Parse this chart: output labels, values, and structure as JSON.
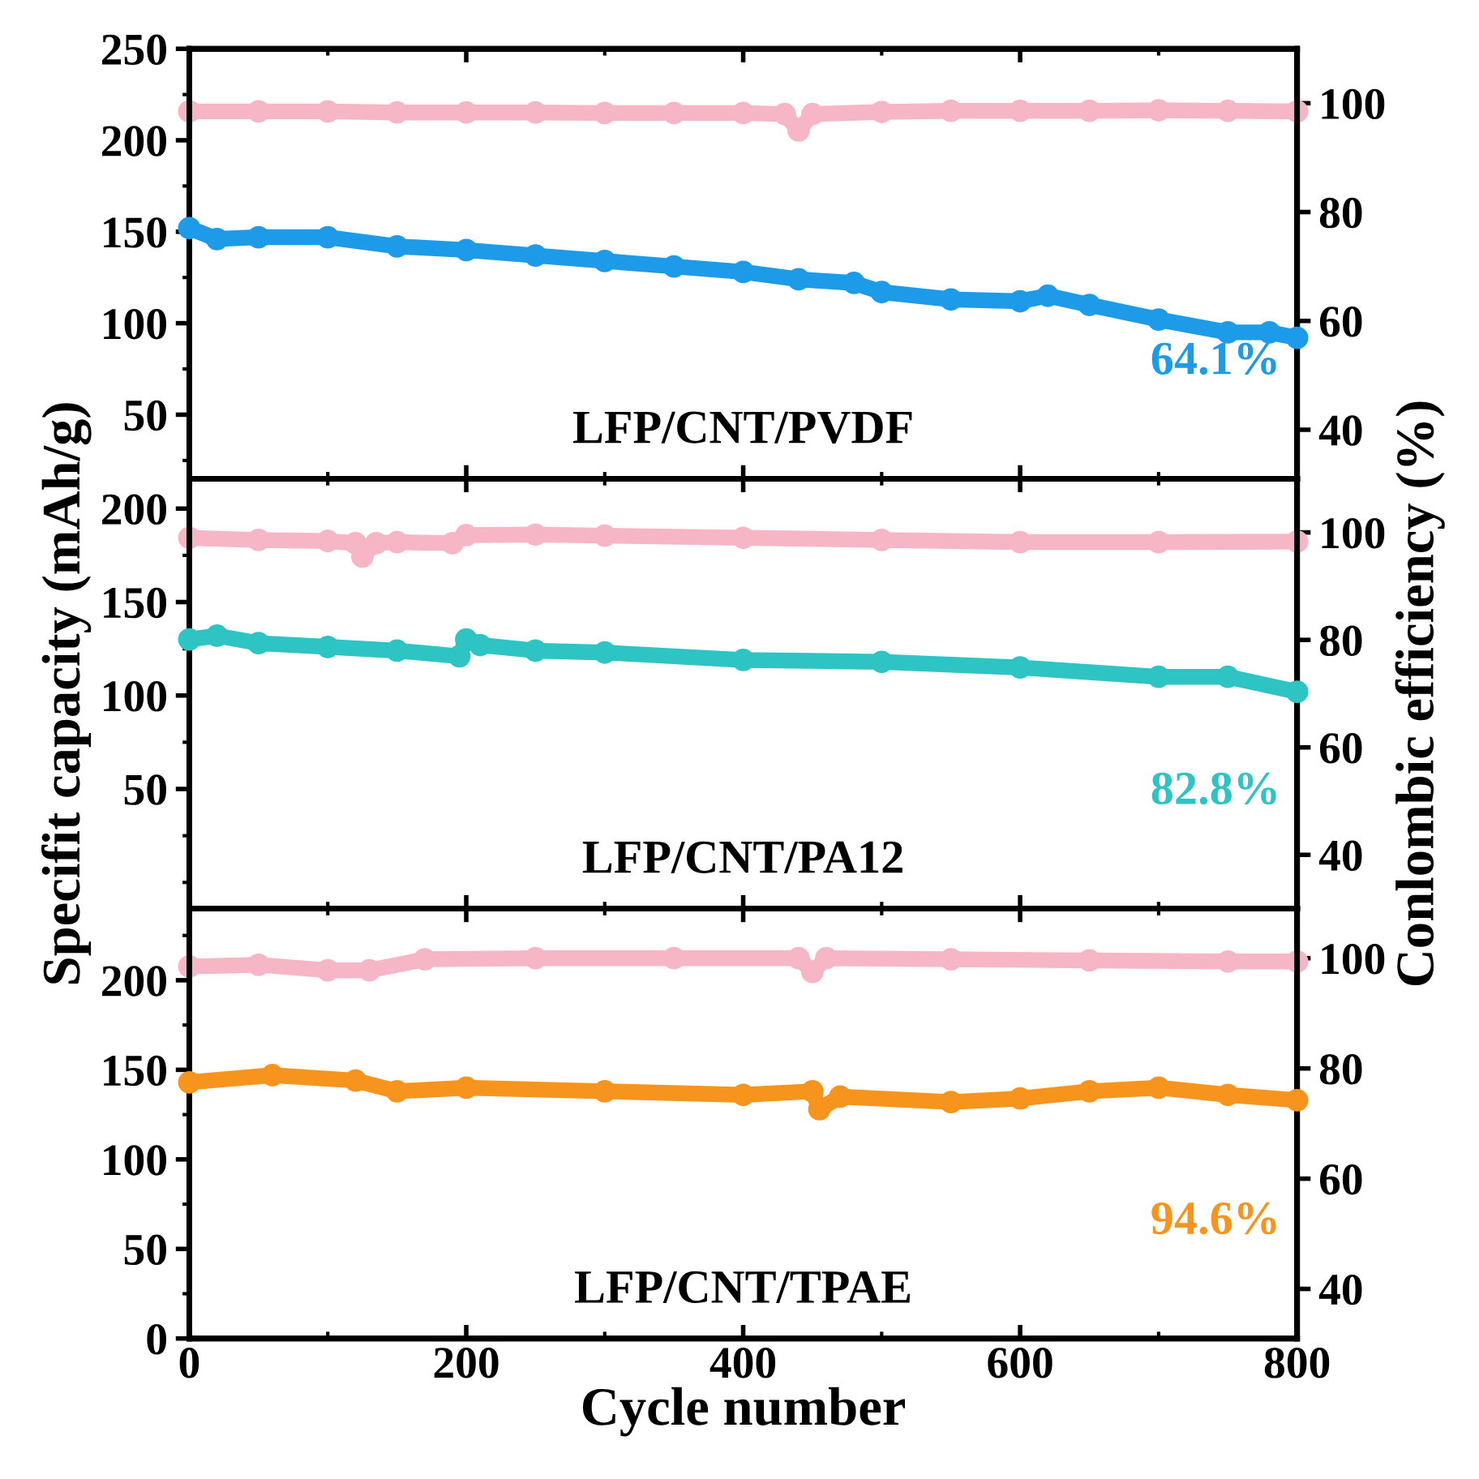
{
  "chart_data": [
    {
      "type": "line",
      "marker": "circle",
      "xlim": [
        0,
        800
      ],
      "xticks": [
        0,
        200,
        400,
        600,
        800
      ],
      "ylim": [
        15,
        250
      ],
      "yticks": [
        50,
        100,
        150,
        200,
        250
      ],
      "y2lim": [
        31,
        110
      ],
      "y2ticks": [
        40,
        60,
        80,
        100
      ],
      "tick_labels": "y",
      "grid": false,
      "legend": false,
      "series": [
        {
          "color": "#f7b6c5",
          "axis": "y2",
          "x": [
            0,
            50,
            100,
            150,
            200,
            250,
            300,
            350,
            400,
            430,
            440,
            450,
            500,
            550,
            600,
            650,
            700,
            750,
            800
          ],
          "values": [
            98.5,
            98.5,
            98.5,
            98.3,
            98.3,
            98.3,
            98.2,
            98.2,
            98.2,
            98.0,
            95.0,
            98.0,
            98.4,
            98.6,
            98.6,
            98.6,
            98.7,
            98.6,
            98.5
          ]
        },
        {
          "color": "#1e9be8",
          "x": [
            0,
            20,
            50,
            100,
            150,
            200,
            250,
            300,
            350,
            400,
            440,
            480,
            500,
            550,
            600,
            620,
            650,
            700,
            750,
            780,
            800
          ],
          "values": [
            152,
            146,
            147,
            147,
            142,
            140,
            137,
            134,
            131,
            128,
            124,
            122,
            117,
            113,
            112,
            115,
            110,
            102,
            95,
            95,
            92
          ]
        }
      ],
      "annotations": [
        "LFP/CNT/PVDF",
        "64.1%"
      ]
    },
    {
      "type": "line",
      "marker": "circle",
      "xlim": [
        0,
        800
      ],
      "xticks": [
        0,
        200,
        400,
        600,
        800
      ],
      "ylim": [
        -14,
        216
      ],
      "yticks": [
        50,
        100,
        150,
        200
      ],
      "y2lim": [
        30,
        110
      ],
      "y2ticks": [
        40,
        60,
        80,
        100
      ],
      "tick_labels": "y",
      "grid": false,
      "legend": false,
      "ylabel": "Specifit capacity (mAh/g)",
      "y2label": "Conlombic efficiency (%)",
      "series": [
        {
          "color": "#f7b6c5",
          "axis": "y2",
          "x": [
            0,
            50,
            100,
            120,
            125,
            135,
            150,
            190,
            200,
            250,
            300,
            400,
            500,
            600,
            700,
            800
          ],
          "values": [
            99.0,
            98.6,
            98.4,
            98.0,
            95.5,
            98.0,
            98.2,
            98.0,
            99.5,
            99.6,
            99.4,
            99.0,
            98.6,
            98.2,
            98.2,
            98.3
          ]
        },
        {
          "color": "#2ec4c4",
          "x": [
            0,
            20,
            50,
            100,
            150,
            195,
            200,
            210,
            250,
            300,
            400,
            500,
            600,
            700,
            750,
            800
          ],
          "values": [
            130,
            132,
            128,
            126,
            124,
            121,
            130,
            127,
            124,
            123,
            119,
            118,
            115,
            110,
            110,
            102
          ]
        }
      ],
      "annotations": [
        "LFP/CNT/PA12",
        "82.8%"
      ]
    },
    {
      "type": "line",
      "marker": "circle",
      "xlim": [
        0,
        800
      ],
      "xticks": [
        0,
        200,
        400,
        600,
        800
      ],
      "ylim": [
        0,
        240
      ],
      "yticks": [
        0,
        50,
        100,
        150,
        200
      ],
      "y2lim": [
        31,
        109
      ],
      "y2ticks": [
        40,
        60,
        80,
        100
      ],
      "grid": false,
      "legend": false,
      "xlabel": "Cycle number",
      "series": [
        {
          "color": "#f7b6c5",
          "axis": "y2",
          "x": [
            0,
            50,
            100,
            130,
            170,
            250,
            350,
            440,
            450,
            460,
            550,
            650,
            750,
            800
          ],
          "values": [
            98.5,
            98.8,
            97.8,
            97.8,
            99.8,
            100.0,
            100.0,
            100.0,
            97.5,
            100.0,
            99.8,
            99.6,
            99.4,
            99.4
          ]
        },
        {
          "color": "#f7941d",
          "x": [
            0,
            60,
            120,
            150,
            200,
            300,
            400,
            450,
            455,
            470,
            550,
            600,
            650,
            700,
            750,
            800
          ],
          "values": [
            143,
            147,
            144,
            138,
            140,
            138,
            136,
            138,
            128,
            135,
            132,
            134,
            138,
            140,
            136,
            133
          ]
        }
      ],
      "annotations": [
        "LFP/CNT/TPAE",
        "94.6%"
      ]
    }
  ]
}
